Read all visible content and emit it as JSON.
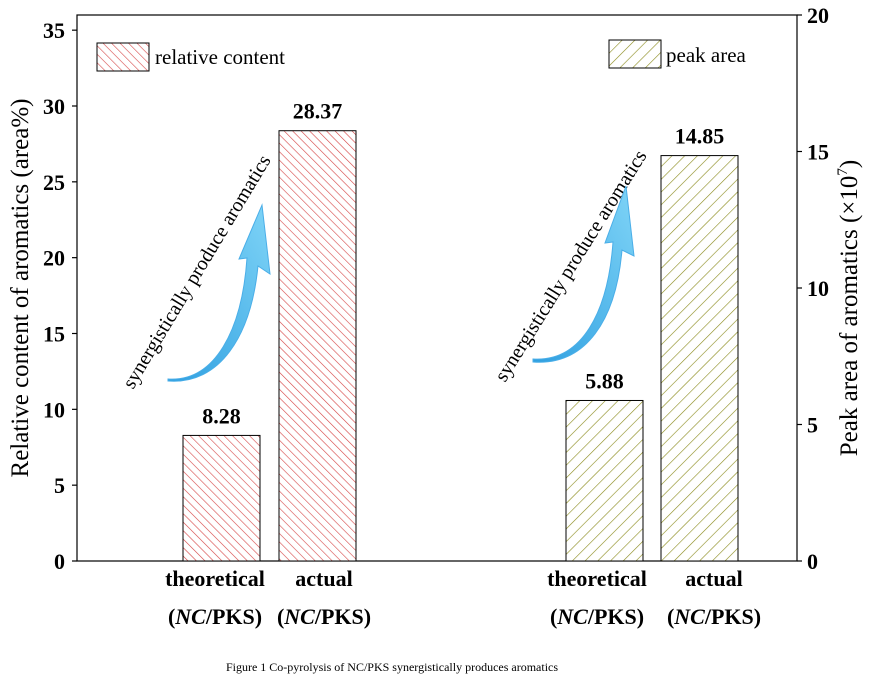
{
  "chart_data": {
    "type": "bar",
    "caption": "Figure 1 Co-pyrolysis of NC/PKS synergistically produces aromatics",
    "left_axis": {
      "title": "Relative content of aromatics (area%)",
      "ylim": [
        0,
        36
      ],
      "ticks": [
        0,
        5,
        10,
        15,
        20,
        25,
        30,
        35
      ]
    },
    "right_axis": {
      "title_main": "Peak area of aromatics (×10",
      "title_sup": "7",
      "title_end": ")",
      "ylim": [
        0,
        20
      ],
      "ticks": [
        0,
        5,
        10,
        15,
        20
      ]
    },
    "series": [
      {
        "name": "relative content",
        "axis": "left",
        "color": "#d64545",
        "pattern": "hatch-right",
        "categories": [
          {
            "line1": "theoretical",
            "italic": "NC",
            "rest": "/PKS)"
          },
          {
            "line1": "actual",
            "italic": "NC",
            "rest": "/PKS)"
          }
        ],
        "values": [
          8.28,
          28.37
        ],
        "value_labels": [
          "8.28",
          "28.37"
        ]
      },
      {
        "name": "peak area",
        "axis": "right",
        "color": "#8a8a1a",
        "pattern": "hatch-left",
        "categories": [
          {
            "line1": "theoretical",
            "italic": "NC",
            "rest": "/PKS)"
          },
          {
            "line1": "actual",
            "italic": "NC",
            "rest": "/PKS)"
          }
        ],
        "values": [
          5.88,
          14.85
        ],
        "value_labels": [
          "5.88",
          "14.85"
        ]
      }
    ],
    "annotations": [
      "synergistically produce aromatics",
      "synergistically produce aromatics"
    ],
    "arrow_color": "#5bc0f0",
    "legend": [
      {
        "label": "relative content",
        "placement": "top-left"
      },
      {
        "label": "peak area",
        "placement": "top-right"
      }
    ]
  }
}
